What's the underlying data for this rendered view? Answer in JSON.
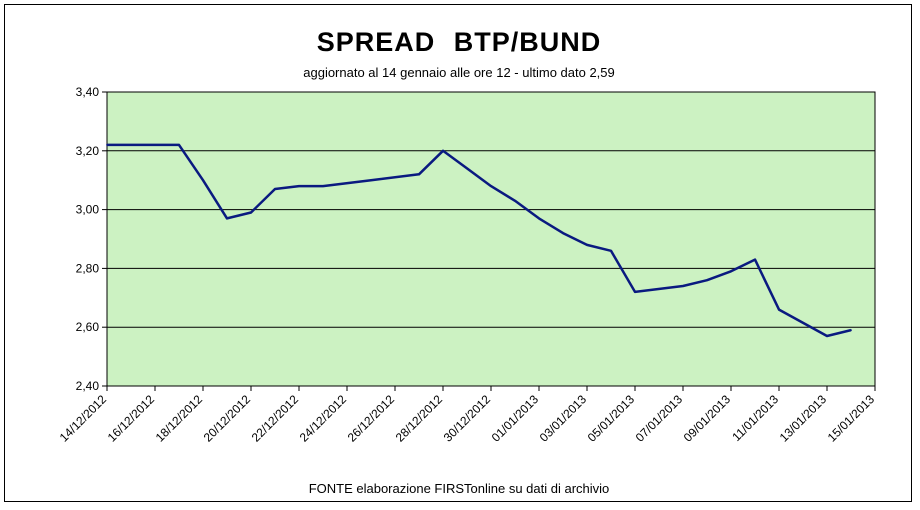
{
  "chart_data": {
    "type": "line",
    "title": "SPREAD  BTP/BUND",
    "subtitle": "aggiornato al 14 gennaio alle ore 12 - ultimo dato 2,59",
    "source": "FONTE elaborazione FIRSTonline su dati di archivio",
    "ylim": [
      2.4,
      3.4
    ],
    "y_ticks": [
      "2,40",
      "2,60",
      "2,80",
      "3,00",
      "3,20",
      "3,40"
    ],
    "y_tick_values": [
      2.4,
      2.6,
      2.8,
      3.0,
      3.2,
      3.4
    ],
    "x_tick_labels": [
      "14/12/2012",
      "16/12/2012",
      "18/12/2012",
      "20/12/2012",
      "22/12/2012",
      "24/12/2012",
      "26/12/2012",
      "28/12/2012",
      "30/12/2012",
      "01/01/2013",
      "03/01/2013",
      "05/01/2013",
      "07/01/2013",
      "09/01/2013",
      "11/01/2013",
      "13/01/2013",
      "15/01/2013"
    ],
    "x_range": [
      "2012-12-14",
      "2013-01-15"
    ],
    "grid": "horizontal",
    "plot_background": "#ccf2c2",
    "line_color": "#0a1a80",
    "series": [
      {
        "x": [
          "2012-12-14",
          "2012-12-17",
          "2012-12-18",
          "2012-12-19",
          "2012-12-20",
          "2012-12-21",
          "2012-12-22",
          "2012-12-23",
          "2012-12-25",
          "2012-12-27",
          "2012-12-28",
          "2012-12-29",
          "2012-12-30",
          "2012-12-31",
          "2013-01-01",
          "2013-01-02",
          "2013-01-03",
          "2013-01-04",
          "2013-01-05",
          "2013-01-07",
          "2013-01-08",
          "2013-01-09",
          "2013-01-10",
          "2013-01-11",
          "2013-01-13",
          "2013-01-14"
        ],
        "values": [
          3.22,
          3.22,
          3.1,
          2.97,
          2.99,
          3.07,
          3.08,
          3.08,
          3.1,
          3.12,
          3.2,
          3.14,
          3.08,
          3.03,
          2.97,
          2.92,
          2.88,
          2.86,
          2.72,
          2.74,
          2.76,
          2.79,
          2.83,
          2.66,
          2.57,
          2.59
        ]
      }
    ]
  }
}
